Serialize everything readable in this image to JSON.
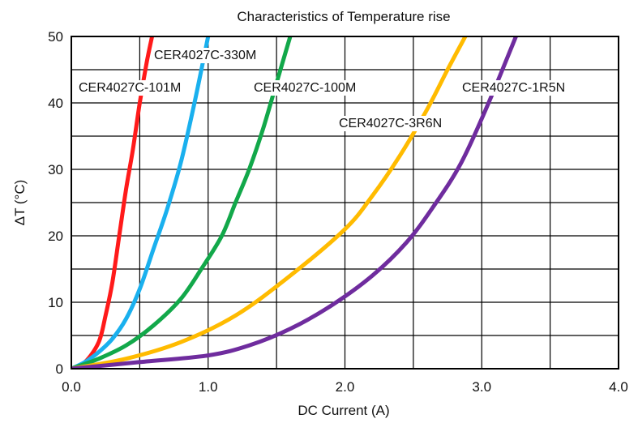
{
  "chart_data": {
    "type": "line",
    "title": "Characteristics of Temperature rise",
    "xlabel": "DC Current (A)",
    "ylabel": "ΔT (°C)",
    "xlim": [
      0,
      4
    ],
    "ylim": [
      0,
      50
    ],
    "xticks": [
      0,
      1,
      2,
      3,
      4
    ],
    "xtick_labels": [
      "0.0",
      "1.0",
      "2.0",
      "3.0",
      "4.0"
    ],
    "yticks": [
      0,
      10,
      20,
      30,
      40,
      50
    ],
    "ytick_labels": [
      "0",
      "10",
      "20",
      "30",
      "40",
      "50"
    ],
    "grid": true,
    "series": [
      {
        "name": "CER4027C-101M",
        "color": "#ff1a1a",
        "x": [
          0,
          0.1,
          0.2,
          0.25,
          0.3,
          0.35,
          0.4,
          0.45,
          0.5,
          0.55,
          0.59
        ],
        "y": [
          0,
          1,
          4,
          8,
          13,
          20,
          27,
          33,
          40,
          46,
          50
        ]
      },
      {
        "name": "CER4027C-330M",
        "color": "#1ab0ee",
        "x": [
          0,
          0.1,
          0.2,
          0.3,
          0.4,
          0.5,
          0.6,
          0.7,
          0.8,
          0.9,
          1.0
        ],
        "y": [
          0,
          1,
          2.5,
          4.5,
          7.5,
          12,
          18,
          24,
          31,
          40,
          50
        ]
      },
      {
        "name": "CER4027C-100M",
        "color": "#12a84a",
        "x": [
          0,
          0.2,
          0.4,
          0.6,
          0.8,
          0.95,
          1.1,
          1.2,
          1.3,
          1.4,
          1.5,
          1.6
        ],
        "y": [
          0,
          1.5,
          3.5,
          6.5,
          10.5,
          15,
          20,
          25,
          30,
          36,
          43,
          50
        ]
      },
      {
        "name": "CER4027C-3R6N",
        "color": "#ffbb00",
        "x": [
          0,
          0.4,
          0.8,
          1.2,
          1.6,
          2.0,
          2.2,
          2.4,
          2.6,
          2.75,
          2.88
        ],
        "y": [
          0,
          1.5,
          4,
          8,
          14,
          21,
          26,
          32,
          39,
          45,
          50
        ]
      },
      {
        "name": "CER4027C-1R5N",
        "color": "#6f2c9e",
        "x": [
          0,
          0.5,
          1.0,
          1.3,
          1.6,
          1.9,
          2.2,
          2.45,
          2.65,
          2.85,
          3.05,
          3.25
        ],
        "y": [
          0,
          1,
          2,
          3.5,
          6,
          9.5,
          14,
          19,
          24.5,
          31,
          40,
          50
        ]
      }
    ]
  }
}
